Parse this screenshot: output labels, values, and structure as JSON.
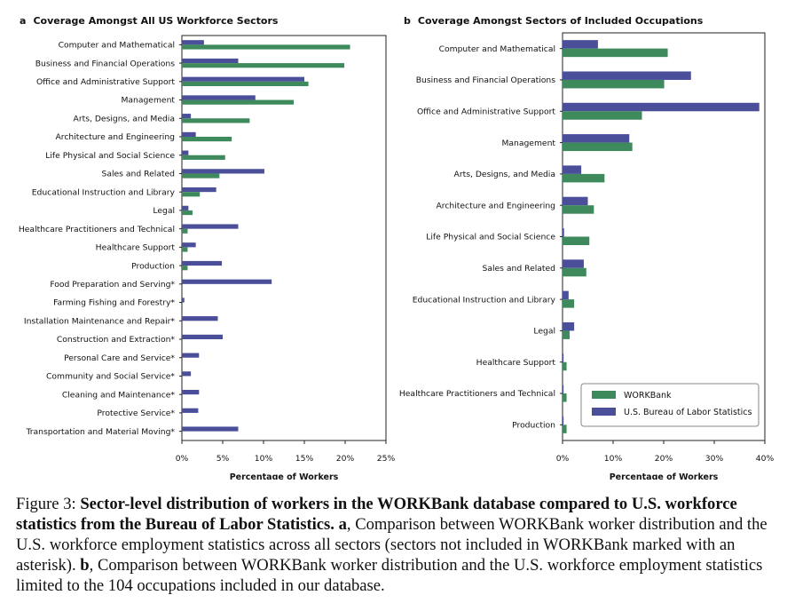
{
  "chart_data": [
    {
      "type": "bar",
      "panel_label": "a",
      "title": "Coverage Amongst All US Workforce Sectors",
      "xlabel": "Percentage of Workers",
      "ylabel": "",
      "xlim": [
        0,
        25
      ],
      "xticks": [
        "0%",
        "5%",
        "10%",
        "15%",
        "20%",
        "25%"
      ],
      "orientation": "horizontal",
      "legend": "none",
      "grid": false,
      "categories": [
        "Computer and Mathematical",
        "Business and Financial Operations",
        "Office and Administrative Support",
        "Management",
        "Arts, Designs, and Media",
        "Architecture and Engineering",
        "Life Physical and Social Science",
        "Sales and Related",
        "Educational Instruction and Library",
        "Legal",
        "Healthcare Practitioners and Technical",
        "Healthcare Support",
        "Production",
        "Food Preparation and Serving*",
        "Farming Fishing and Forestry*",
        "Installation Maintenance and Repair*",
        "Construction and Extraction*",
        "Personal Care and Service*",
        "Community and Social Service*",
        "Cleaning and Maintenance*",
        "Protective Service*",
        "Transportation and Material Moving*"
      ],
      "series": [
        {
          "name": "U.S. Bureau of Labor Statistics",
          "color": "#4b4f9a",
          "values": [
            2.7,
            6.9,
            15.0,
            9.0,
            1.1,
            1.7,
            0.8,
            10.1,
            4.2,
            0.8,
            6.9,
            1.7,
            4.9,
            11.0,
            0.3,
            4.4,
            5.0,
            2.1,
            1.1,
            2.1,
            2.0,
            6.9
          ]
        },
        {
          "name": "WORKBank",
          "color": "#3f8a5c",
          "values": [
            20.6,
            19.9,
            15.5,
            13.7,
            8.3,
            6.1,
            5.3,
            4.6,
            2.2,
            1.3,
            0.7,
            0.7,
            0.7,
            0,
            0,
            0,
            0,
            0,
            0,
            0,
            0,
            0
          ]
        }
      ]
    },
    {
      "type": "bar",
      "panel_label": "b",
      "title": "Coverage Amongst Sectors of Included Occupations",
      "xlabel": "Percentage of Workers",
      "ylabel": "",
      "xlim": [
        0,
        40
      ],
      "xticks": [
        "0%",
        "10%",
        "20%",
        "30%",
        "40%"
      ],
      "orientation": "horizontal",
      "legend": "bottom-right",
      "grid": false,
      "categories": [
        "Computer and Mathematical",
        "Business and Financial Operations",
        "Office and Administrative Support",
        "Management",
        "Arts, Designs, and Media",
        "Architecture and Engineering",
        "Life Physical and Social Science",
        "Sales and Related",
        "Educational Instruction and Library",
        "Legal",
        "Healthcare Support",
        "Healthcare Practitioners and Technical",
        "Production"
      ],
      "series": [
        {
          "name": "U.S. Bureau of Labor Statistics",
          "color": "#4b4f9a",
          "values": [
            7.0,
            25.4,
            38.9,
            13.2,
            3.7,
            5.0,
            0.3,
            4.2,
            1.2,
            2.3,
            0.2,
            0.2,
            0.2
          ]
        },
        {
          "name": "WORKBank",
          "color": "#3f8a5c",
          "values": [
            20.8,
            20.1,
            15.7,
            13.8,
            8.3,
            6.2,
            5.3,
            4.7,
            2.3,
            1.4,
            0.8,
            0.8,
            0.8
          ]
        }
      ],
      "legend_entries": [
        "WORKBank",
        "U.S. Bureau of Labor Statistics"
      ]
    }
  ],
  "caption": {
    "figure_label": "Figure 3:",
    "bold_title": "Sector-level distribution of workers in the WORKBank database compared to U.S. workforce statistics from the Bureau of Labor Statistics.",
    "part_a_label": "a",
    "part_a_text": ", Comparison between WORKBank worker distribution and the U.S. workforce employment statistics across all sectors (sectors not included in WORKBank marked with an asterisk).",
    "part_b_label": "b",
    "part_b_text": ", Comparison between WORKBank worker distribution and the U.S. workforce employment statistics limited to the 104 occupations included in our database."
  }
}
